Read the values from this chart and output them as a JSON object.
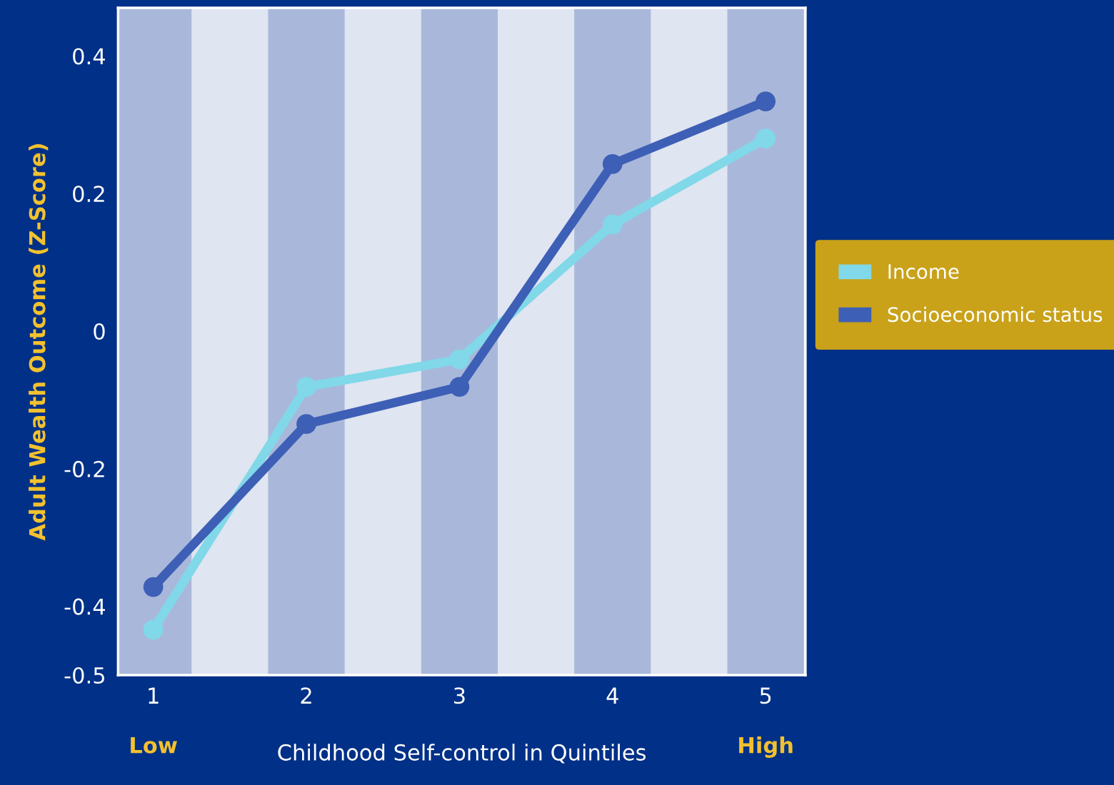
{
  "chart_data": {
    "type": "line",
    "xlabel": "Childhood Self-control in Quintiles",
    "ylabel": "Adult Wealth Outcome (Z-Score)",
    "x": [
      1,
      2,
      3,
      4,
      5
    ],
    "series": [
      {
        "name": "Income",
        "color": "#80d8e8",
        "values": [
          -0.434,
          -0.081,
          -0.041,
          0.155,
          0.28
        ]
      },
      {
        "name": "Socioeconomic status",
        "color": "#3e5fb6",
        "values": [
          -0.372,
          -0.135,
          -0.081,
          0.243,
          0.334
        ]
      }
    ],
    "xlim": [
      0.77,
      5.26
    ],
    "xticks": [
      1,
      2,
      3,
      4,
      5
    ],
    "ylim": [
      -0.5,
      0.47
    ],
    "yticks": [
      -0.5,
      -0.4,
      -0.2,
      0,
      0.2,
      0.4
    ],
    "annotations": [
      "Low",
      "High"
    ],
    "marker": "circle",
    "line_style": "solid",
    "grid": false,
    "legend": "right"
  }
}
